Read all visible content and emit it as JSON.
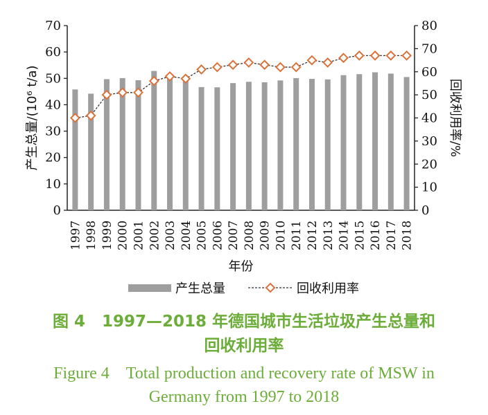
{
  "chart_data": {
    "type": "bar",
    "categories": [
      "1997",
      "1998",
      "1999",
      "2000",
      "2001",
      "2002",
      "2003",
      "2004",
      "2005",
      "2006",
      "2007",
      "2008",
      "2009",
      "2010",
      "2011",
      "2012",
      "2013",
      "2014",
      "2015",
      "2016",
      "2017",
      "2018"
    ],
    "series": [
      {
        "name": "产生总量",
        "type": "bar",
        "axis": "left",
        "color": "#9e9e9e",
        "values": [
          45.8,
          44.2,
          49.7,
          50.1,
          49.3,
          52.8,
          50.6,
          49.6,
          46.7,
          46.6,
          48.2,
          48.7,
          48.5,
          49.2,
          50.1,
          49.8,
          49.6,
          51.2,
          51.6,
          52.3,
          51.8,
          50.5
        ]
      },
      {
        "name": "回收利用率",
        "type": "line",
        "axis": "right",
        "color": "#d9733b",
        "values": [
          40,
          41,
          50,
          51,
          51,
          56,
          58,
          57,
          61,
          62,
          63,
          64,
          63,
          62,
          62,
          65,
          64,
          66,
          67,
          67,
          67,
          67
        ]
      }
    ],
    "xlabel": "年份",
    "ylabel": "产生总量/(10⁶ t/a)",
    "y2label": "回收利用率/%",
    "ylim": [
      0,
      70
    ],
    "y2lim": [
      0,
      80
    ],
    "yticks": [
      0,
      10,
      20,
      30,
      40,
      50,
      60,
      70
    ],
    "y2ticks": [
      0,
      10,
      20,
      30,
      40,
      50,
      60,
      70,
      80
    ],
    "legend_position": "bottom",
    "grid": false
  },
  "caption": {
    "zh_number": "图 4",
    "zh_line1": "1997—2018 年德国城市生活垃圾产生总量和",
    "zh_line2": "回收利用率",
    "en_number": "Figure 4",
    "en_line1": "Total production and recovery rate of MSW in",
    "en_line2": "Germany from 1997 to 2018"
  },
  "colors": {
    "caption": "#6cad3a",
    "axis": "#222222"
  }
}
